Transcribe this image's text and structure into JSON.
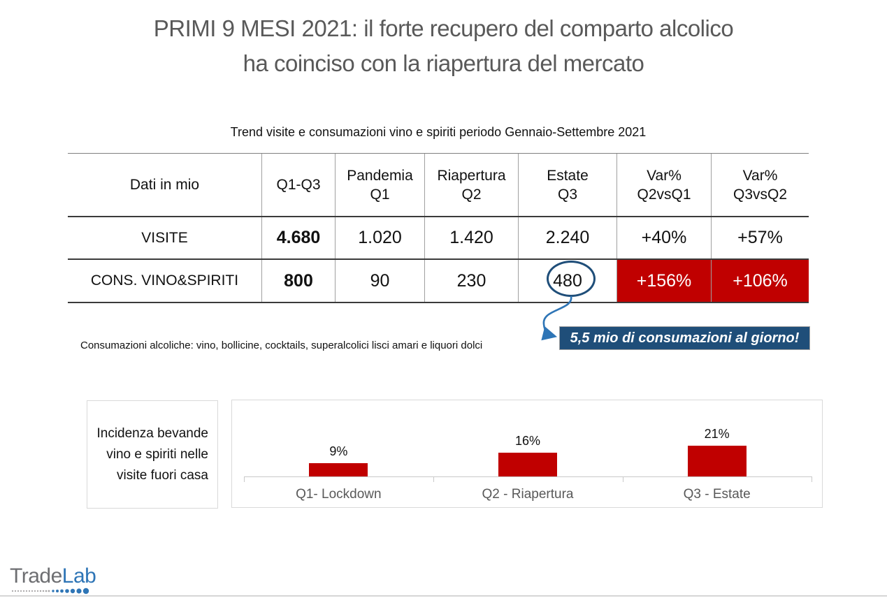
{
  "slide": {
    "title_line1": "PRIMI 9 MESI 2021: il forte recupero del comparto alcolico",
    "title_line2": "ha coinciso con la riapertura del mercato",
    "table_title": "Trend visite e consumazioni vino e spiriti periodo Gennaio-Settembre 2021",
    "footnote": "Consumazioni alcoliche: vino, bollicine, cocktails, superalcolici lisci amari e liquori dolci",
    "callout_text": "5,5 mio di consumazioni al giorno!"
  },
  "table": {
    "headers": [
      {
        "line1": "Dati in mio",
        "line2": ""
      },
      {
        "line1": "Q1-Q3",
        "line2": ""
      },
      {
        "line1": "Pandemia",
        "line2": "Q1"
      },
      {
        "line1": "Riapertura",
        "line2": "Q2"
      },
      {
        "line1": "Estate",
        "line2": "Q3"
      },
      {
        "line1": "Var%",
        "line2": "Q2vsQ1"
      },
      {
        "line1": "Var%",
        "line2": "Q3vsQ2"
      }
    ],
    "rows": [
      {
        "label": "VISITE",
        "values": [
          "4.680",
          "1.020",
          "1.420",
          "2.240",
          "+40%",
          "+57%"
        ]
      },
      {
        "label": "CONS. VINO&SPIRITI",
        "values": [
          "800",
          "90",
          "230",
          "480",
          "+156%",
          "+106%"
        ]
      }
    ],
    "highlight_note": "value 480 circled, last two cells of second row on red background"
  },
  "chart_data": {
    "type": "bar",
    "title": "Incidenza bevande vino e spiriti nelle visite fuori casa",
    "categories": [
      "Q1- Lockdown",
      "Q2 - Riapertura",
      "Q3 - Estate"
    ],
    "values": [
      9,
      16,
      21
    ],
    "value_labels": [
      "9%",
      "16%",
      "21%"
    ],
    "unit": "%",
    "ylim": [
      0,
      25
    ],
    "grid": false,
    "legend": false,
    "bar_color": "#C00000"
  },
  "side_label": {
    "text": "Incidenza bevande vino e spiriti nelle visite fuori casa"
  },
  "logo": {
    "text_gray": "Trade",
    "text_blue": "Lab"
  },
  "colors": {
    "title_gray": "#595959",
    "accent_red": "#C00000",
    "callout_blue": "#1F4E79",
    "arrow_blue": "#2E75B6",
    "logo_gray": "#6D6E71",
    "logo_blue": "#2E75B6",
    "chart_border": "#D9D9D9"
  }
}
